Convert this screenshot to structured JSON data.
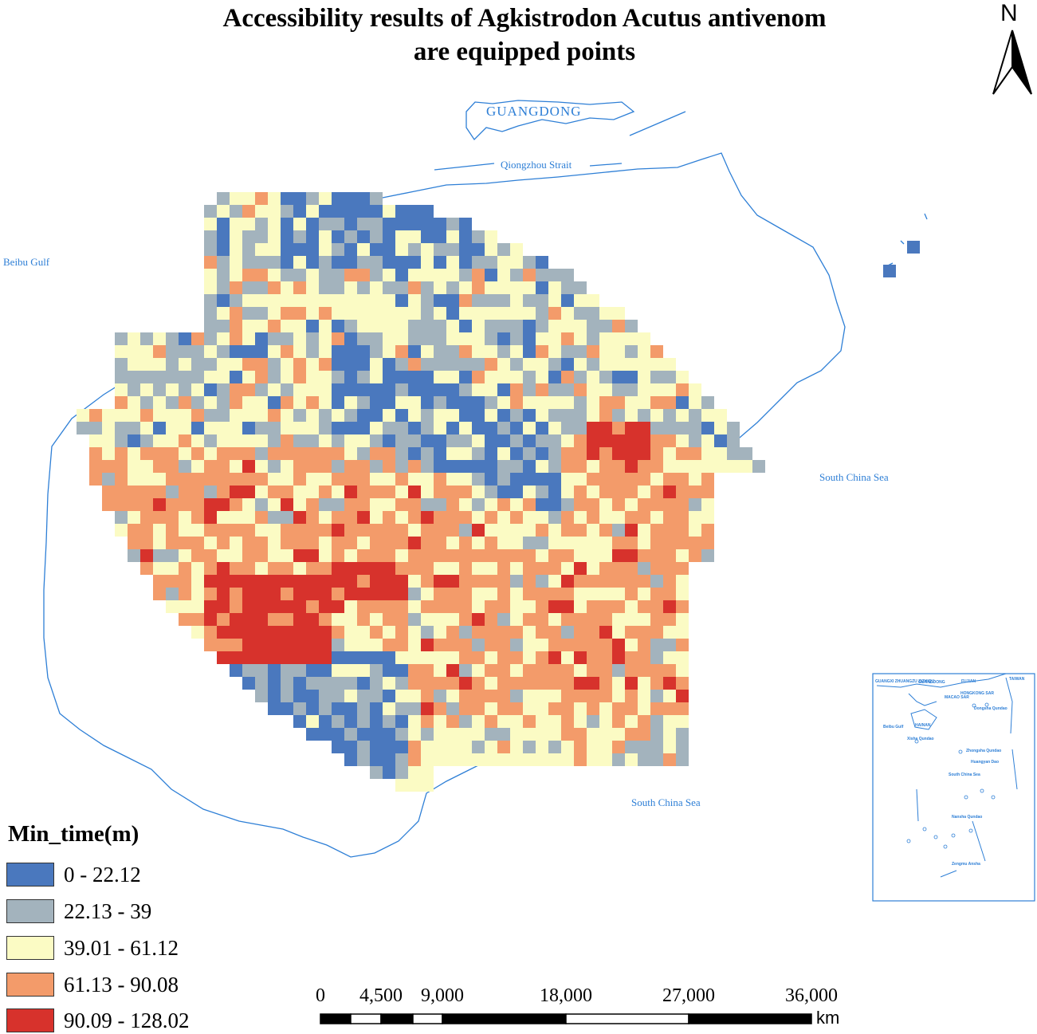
{
  "title_line1": "Accessibility results of Agkistrodon Acutus antivenom",
  "title_line2": "are equipped points",
  "north": {
    "letter": "N",
    "icon": "north-arrow-icon"
  },
  "places": {
    "guangdong": "GUANGDONG",
    "qiongzhou": "Qiongzhou Strait",
    "beibu": "Beibu Gulf",
    "scs_east": "South China Sea",
    "scs_south": "South China Sea"
  },
  "legend": {
    "title": "Min_time(m)",
    "classes": [
      {
        "label": "0 - 22.12",
        "color": "#4a78be"
      },
      {
        "label": "22.13 - 39",
        "color": "#a3b3bd"
      },
      {
        "label": "39.01 - 61.12",
        "color": "#fbfbc4"
      },
      {
        "label": "61.13 - 90.08",
        "color": "#f39b6a"
      },
      {
        "label": "90.09 - 128.02",
        "color": "#d7322c"
      }
    ]
  },
  "scale": {
    "ticks": [
      "0",
      "4,500",
      "9,000",
      "18,000",
      "27,000",
      "36,000"
    ],
    "unit": "km"
  },
  "inset": {
    "labels": [
      "GUANGXI ZHUANGZU ZIZHIQU",
      "GUANGDONG",
      "FUJIAN",
      "TAIWAN",
      "HONGKONG SAR",
      "MACAO SAR",
      "Dongsha Qundao",
      "HAINAN",
      "Beibu Gulf",
      "Xisha Qundao",
      "Zhongsha Qundao",
      "Huangyan Dao",
      "South China Sea",
      "Nansha Qundao",
      "Zengmu Ansha"
    ]
  },
  "colors": {
    "coast": "#2e7fd6",
    "dark": "#000000"
  }
}
